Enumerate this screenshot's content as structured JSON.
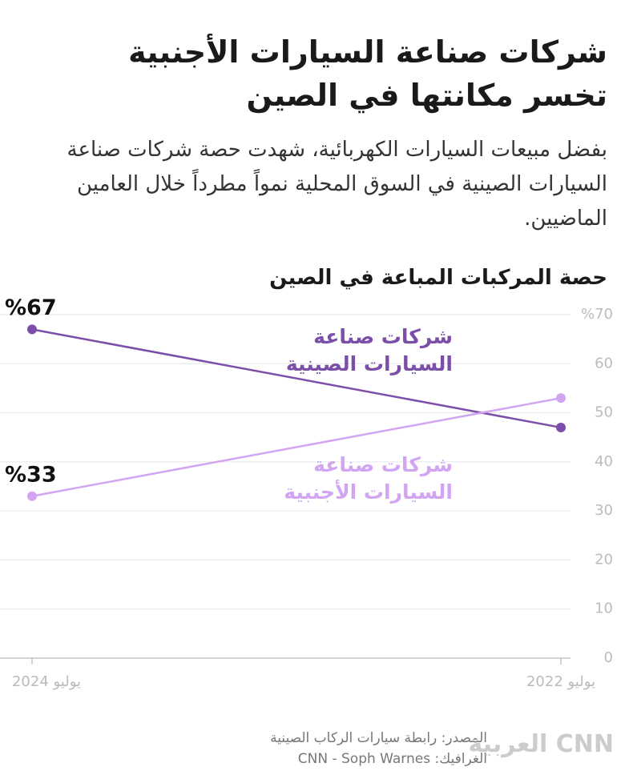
{
  "header": {
    "title": "شركات صناعة السيارات الأجنبية تخسر مكانتها في الصين",
    "subtitle": "بفضل مبيعات السيارات الكهربائية، شهدت حصة شركات صناعة السيارات الصينية في السوق المحلية نمواً مطرداً خلال العامين الماضيين."
  },
  "chart_data": {
    "type": "line",
    "title": "حصة المركبات المباعة في الصين",
    "categories": [
      "يوليو 2022",
      "يوليو 2024"
    ],
    "series": [
      {
        "name": "شركات صناعة السيارات الصينية",
        "color": "#7b4fa9",
        "values": [
          47,
          67
        ],
        "value_labels": [
          null,
          "%67"
        ]
      },
      {
        "name": "شركات صناعة السيارات الأجنبية",
        "color": "#d2a5f2",
        "values": [
          53,
          33
        ],
        "value_labels": [
          null,
          "%33"
        ]
      }
    ],
    "ylim": [
      0,
      70
    ],
    "yticks": [
      0,
      10,
      20,
      30,
      40,
      50,
      60,
      {
        "value": 70,
        "label": "%70"
      }
    ],
    "grid": true
  },
  "footer": {
    "source": "المصدر: رابطة سيارات الركاب الصينية",
    "credit": "الغرافيك: CNN - Soph Warnes",
    "logo": "CNN العربية"
  }
}
